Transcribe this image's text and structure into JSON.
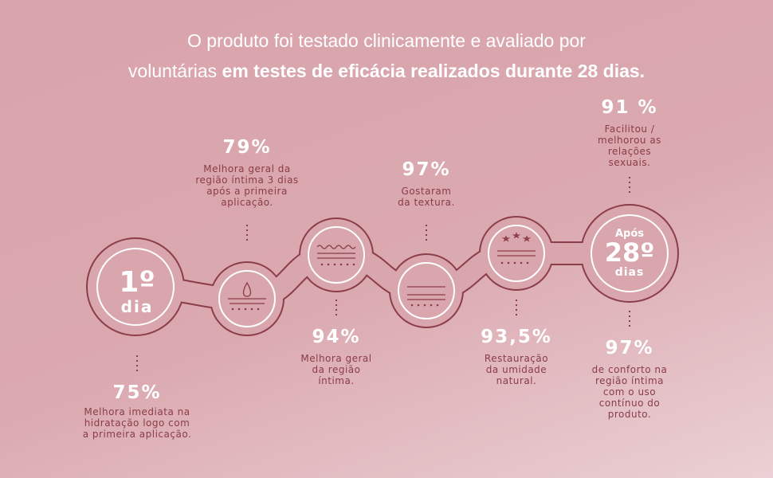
{
  "headline": {
    "line1": "O produto foi testado clinicamente e avaliado por",
    "line2_regular": "voluntárias",
    "line2_bold": "em testes de eficácia realizados durante 28 dias."
  },
  "nodes": [
    {
      "label": [
        "1º",
        "dia"
      ],
      "stat": "75%",
      "text": [
        "Melhora imediata na",
        "hidratação logo com",
        "a primeira aplicação."
      ]
    },
    {
      "stat": "79%",
      "text": [
        "Melhora geral da",
        "região íntima 3 dias",
        "após a primeira",
        "aplicação."
      ]
    },
    {
      "stat": "94%",
      "text": [
        "Melhora geral",
        "da região",
        "íntima."
      ]
    },
    {
      "stat": "97%",
      "text": [
        "Gostaram",
        "da textura."
      ]
    },
    {
      "stat": "93,5%",
      "text": [
        "Restauração",
        "da umidade",
        "natural."
      ]
    },
    {
      "label": [
        "Após",
        "28º",
        "dias"
      ],
      "stat": "91 %",
      "text": [
        "Facilitou /",
        "melhorou as",
        "relações",
        "sexuais."
      ],
      "stat2": "97%",
      "text2": [
        "de conforto na",
        "região íntima",
        "com o uso",
        "contínuo do",
        "produto."
      ]
    }
  ]
}
